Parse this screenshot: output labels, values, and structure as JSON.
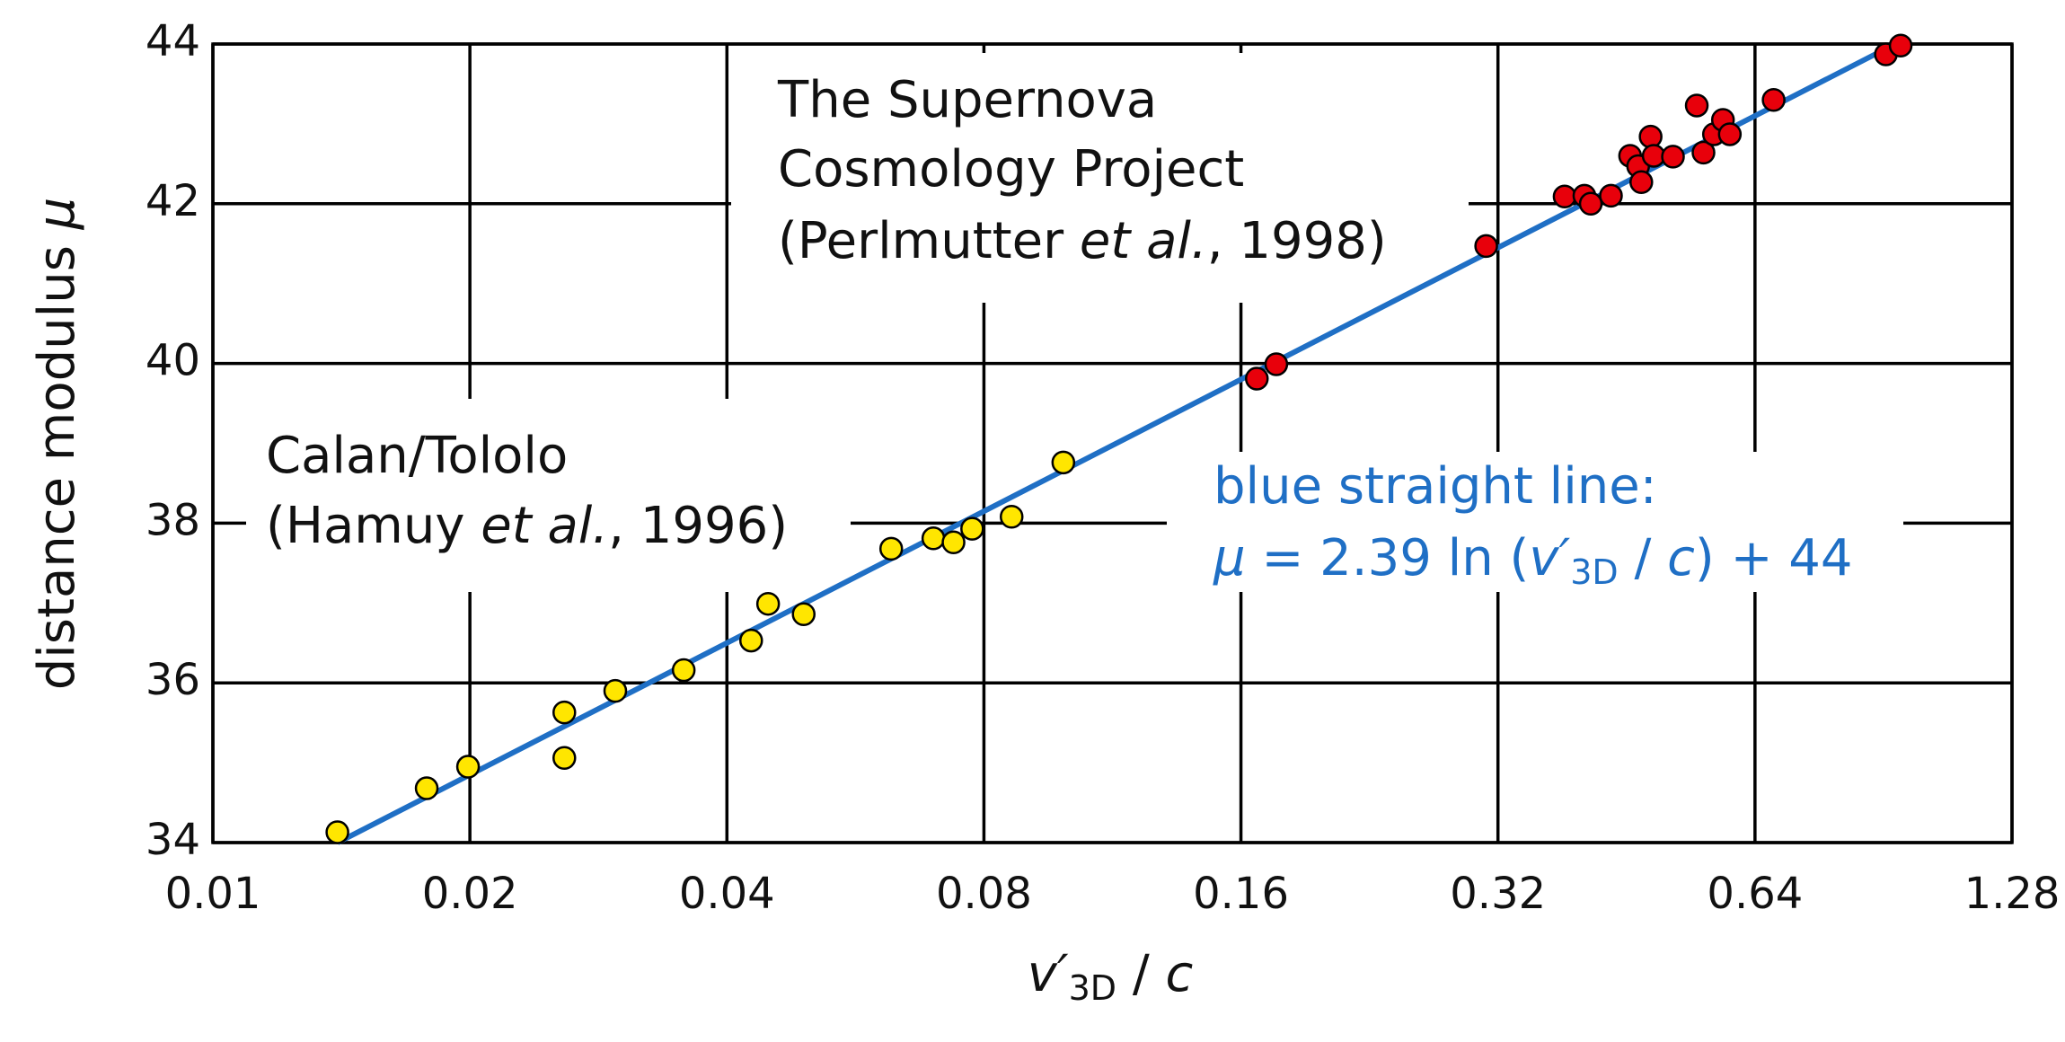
{
  "chart_data": {
    "type": "scatter",
    "x_scale": "log2",
    "xlabel": [
      "v′",
      "3D",
      " / ",
      "c"
    ],
    "ylabel": [
      "distance modulus ",
      "μ"
    ],
    "xlim": [
      0.01,
      1.28
    ],
    "xticks": [
      0.01,
      0.02,
      0.04,
      0.08,
      0.16,
      0.32,
      0.64,
      1.28
    ],
    "ylim": [
      34,
      44
    ],
    "yticks": [
      34,
      36,
      38,
      40,
      42,
      44
    ],
    "grid": true,
    "series": [
      {
        "color": "#ffe600",
        "marker": "circle",
        "x": [
          0.01399,
          0.0178,
          0.0199,
          0.0258,
          0.0258,
          0.0296,
          0.0356,
          0.0427,
          0.0447,
          0.0492,
          0.0623,
          0.0698,
          0.0737,
          0.0775,
          0.0862,
          0.0991
        ],
        "values": [
          34.13,
          34.68,
          34.95,
          35.63,
          35.06,
          35.9,
          36.16,
          36.53,
          36.99,
          36.86,
          37.68,
          37.81,
          37.76,
          37.93,
          38.08,
          38.76
        ]
      },
      {
        "color": "#e8000b",
        "marker": "circle",
        "x": [
          0.167,
          0.176,
          0.31,
          0.383,
          0.404,
          0.411,
          0.434,
          0.457,
          0.467,
          0.471,
          0.483,
          0.487,
          0.513,
          0.547,
          0.557,
          0.573,
          0.587,
          0.598,
          0.673,
          0.911,
          0.948
        ],
        "values": [
          39.81,
          39.99,
          41.47,
          42.09,
          42.1,
          42.0,
          42.1,
          42.6,
          42.47,
          42.27,
          42.84,
          42.6,
          42.59,
          43.23,
          42.64,
          42.87,
          43.05,
          42.87,
          43.3,
          43.87,
          43.98
        ]
      },
      {
        "color": "#1f6fc5",
        "marker": "line",
        "x": [
          0.014,
          0.934
        ],
        "values": [
          34,
          44
        ]
      }
    ],
    "annotations": {
      "scp": [
        "The Supernova",
        "Cosmology Project",
        "(Perlmutter ",
        "et al.",
        ", 1998)"
      ],
      "calan": [
        "Calan/Tololo",
        "(Hamuy ",
        "et al.",
        ", 1996)"
      ],
      "fit": [
        "blue straight line:",
        "μ",
        " = 2.39 ln (",
        "v′",
        "3D",
        " / ",
        "c",
        ") + 44"
      ]
    }
  }
}
